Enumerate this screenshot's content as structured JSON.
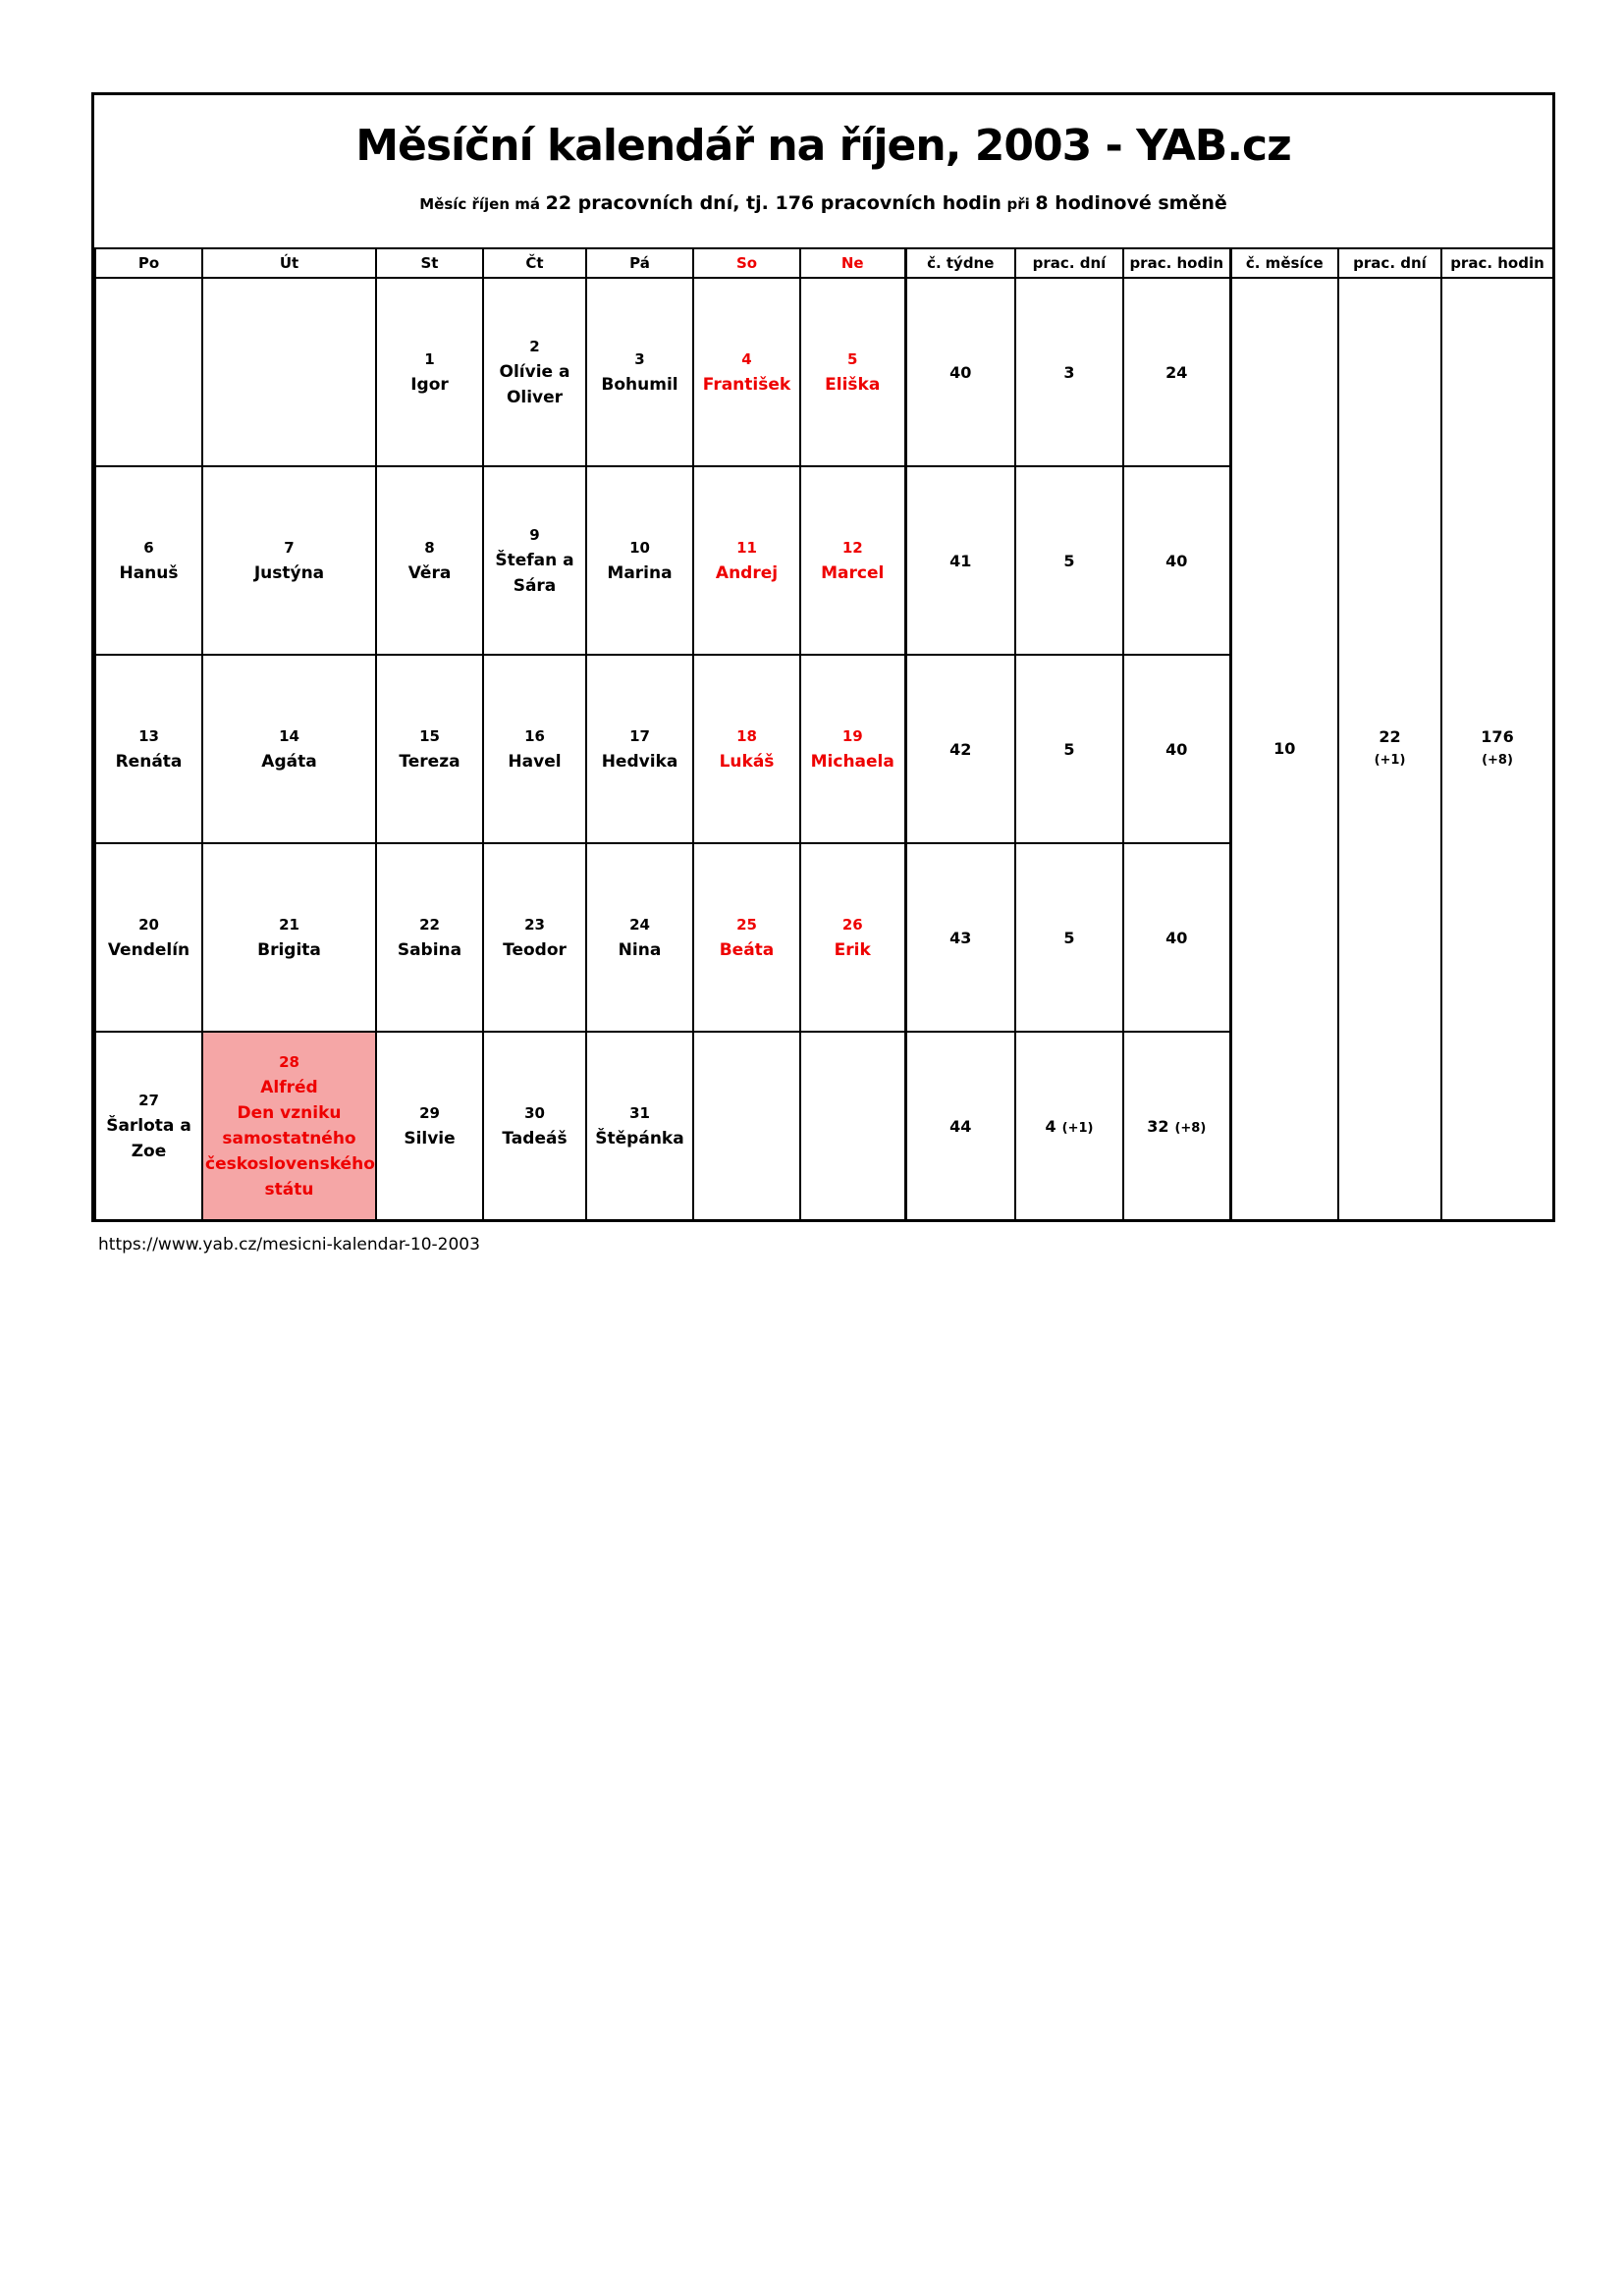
{
  "page": {
    "title": "Měsíční kalendář na říjen, 2003 - YAB.cz",
    "subtitle": {
      "prefix": "Měsíc říjen má",
      "strong1": "22 pracovních dní, tj. 176 pracovních hodin",
      "mid": "při",
      "strong2": "8 hodinové směně"
    },
    "footer_url": "https://www.yab.cz/mesicni-kalendar-10-2003"
  },
  "colors": {
    "weekend_red": "#ee0000",
    "holiday_bg": "#f5a6a6",
    "border": "#000000",
    "background": "#ffffff"
  },
  "table": {
    "headers": [
      "Po",
      "Út",
      "St",
      "Čt",
      "Pá",
      "So",
      "Ne",
      "č. týdne",
      "prac. dní",
      "prac. hodin",
      "č. měsíce",
      "prac. dní",
      "prac. hodin"
    ],
    "weeks": [
      {
        "days": [
          {
            "num": "",
            "name": "",
            "style": "empty"
          },
          {
            "num": "",
            "name": "",
            "style": "empty"
          },
          {
            "num": "1",
            "name": "Igor",
            "style": "day"
          },
          {
            "num": "2",
            "name": "Olívie a Oliver",
            "style": "day"
          },
          {
            "num": "3",
            "name": "Bohumil",
            "style": "day"
          },
          {
            "num": "4",
            "name": "František",
            "style": "weekend"
          },
          {
            "num": "5",
            "name": "Eliška",
            "style": "weekend"
          }
        ],
        "week_no": "40",
        "week_no_extra": "",
        "work_days": "3",
        "work_days_extra": "",
        "work_hours": "24",
        "work_hours_extra": ""
      },
      {
        "days": [
          {
            "num": "6",
            "name": "Hanuš",
            "style": "day"
          },
          {
            "num": "7",
            "name": "Justýna",
            "style": "day"
          },
          {
            "num": "8",
            "name": "Věra",
            "style": "day"
          },
          {
            "num": "9",
            "name": "Štefan a Sára",
            "style": "day"
          },
          {
            "num": "10",
            "name": "Marina",
            "style": "day"
          },
          {
            "num": "11",
            "name": "Andrej",
            "style": "weekend"
          },
          {
            "num": "12",
            "name": "Marcel",
            "style": "weekend"
          }
        ],
        "week_no": "41",
        "week_no_extra": "",
        "work_days": "5",
        "work_days_extra": "",
        "work_hours": "40",
        "work_hours_extra": ""
      },
      {
        "days": [
          {
            "num": "13",
            "name": "Renáta",
            "style": "day"
          },
          {
            "num": "14",
            "name": "Agáta",
            "style": "day"
          },
          {
            "num": "15",
            "name": "Tereza",
            "style": "day"
          },
          {
            "num": "16",
            "name": "Havel",
            "style": "day"
          },
          {
            "num": "17",
            "name": "Hedvika",
            "style": "day"
          },
          {
            "num": "18",
            "name": "Lukáš",
            "style": "weekend"
          },
          {
            "num": "19",
            "name": "Michaela",
            "style": "weekend"
          }
        ],
        "week_no": "42",
        "week_no_extra": "",
        "work_days": "5",
        "work_days_extra": "",
        "work_hours": "40",
        "work_hours_extra": ""
      },
      {
        "days": [
          {
            "num": "20",
            "name": "Vendelín",
            "style": "day"
          },
          {
            "num": "21",
            "name": "Brigita",
            "style": "day"
          },
          {
            "num": "22",
            "name": "Sabina",
            "style": "day"
          },
          {
            "num": "23",
            "name": "Teodor",
            "style": "day"
          },
          {
            "num": "24",
            "name": "Nina",
            "style": "day"
          },
          {
            "num": "25",
            "name": "Beáta",
            "style": "weekend"
          },
          {
            "num": "26",
            "name": "Erik",
            "style": "weekend"
          }
        ],
        "week_no": "43",
        "week_no_extra": "",
        "work_days": "5",
        "work_days_extra": "",
        "work_hours": "40",
        "work_hours_extra": ""
      },
      {
        "days": [
          {
            "num": "27",
            "name": "Šarlota a Zoe",
            "style": "day"
          },
          {
            "num": "28",
            "name": "Alfréd",
            "note": "Den vzniku samostatného československého státu",
            "style": "holiday"
          },
          {
            "num": "29",
            "name": "Silvie",
            "style": "day"
          },
          {
            "num": "30",
            "name": "Tadeáš",
            "style": "day"
          },
          {
            "num": "31",
            "name": "Štěpánka",
            "style": "day"
          },
          {
            "num": "",
            "name": "",
            "style": "empty"
          },
          {
            "num": "",
            "name": "",
            "style": "empty"
          }
        ],
        "week_no": "44",
        "week_no_extra": "",
        "work_days": "4",
        "work_days_extra": "(+1)",
        "work_hours": "32",
        "work_hours_extra": "(+8)"
      }
    ],
    "month": {
      "number": "10",
      "work_days": "22",
      "work_days_extra": "(+1)",
      "work_hours": "176",
      "work_hours_extra": "(+8)"
    }
  }
}
